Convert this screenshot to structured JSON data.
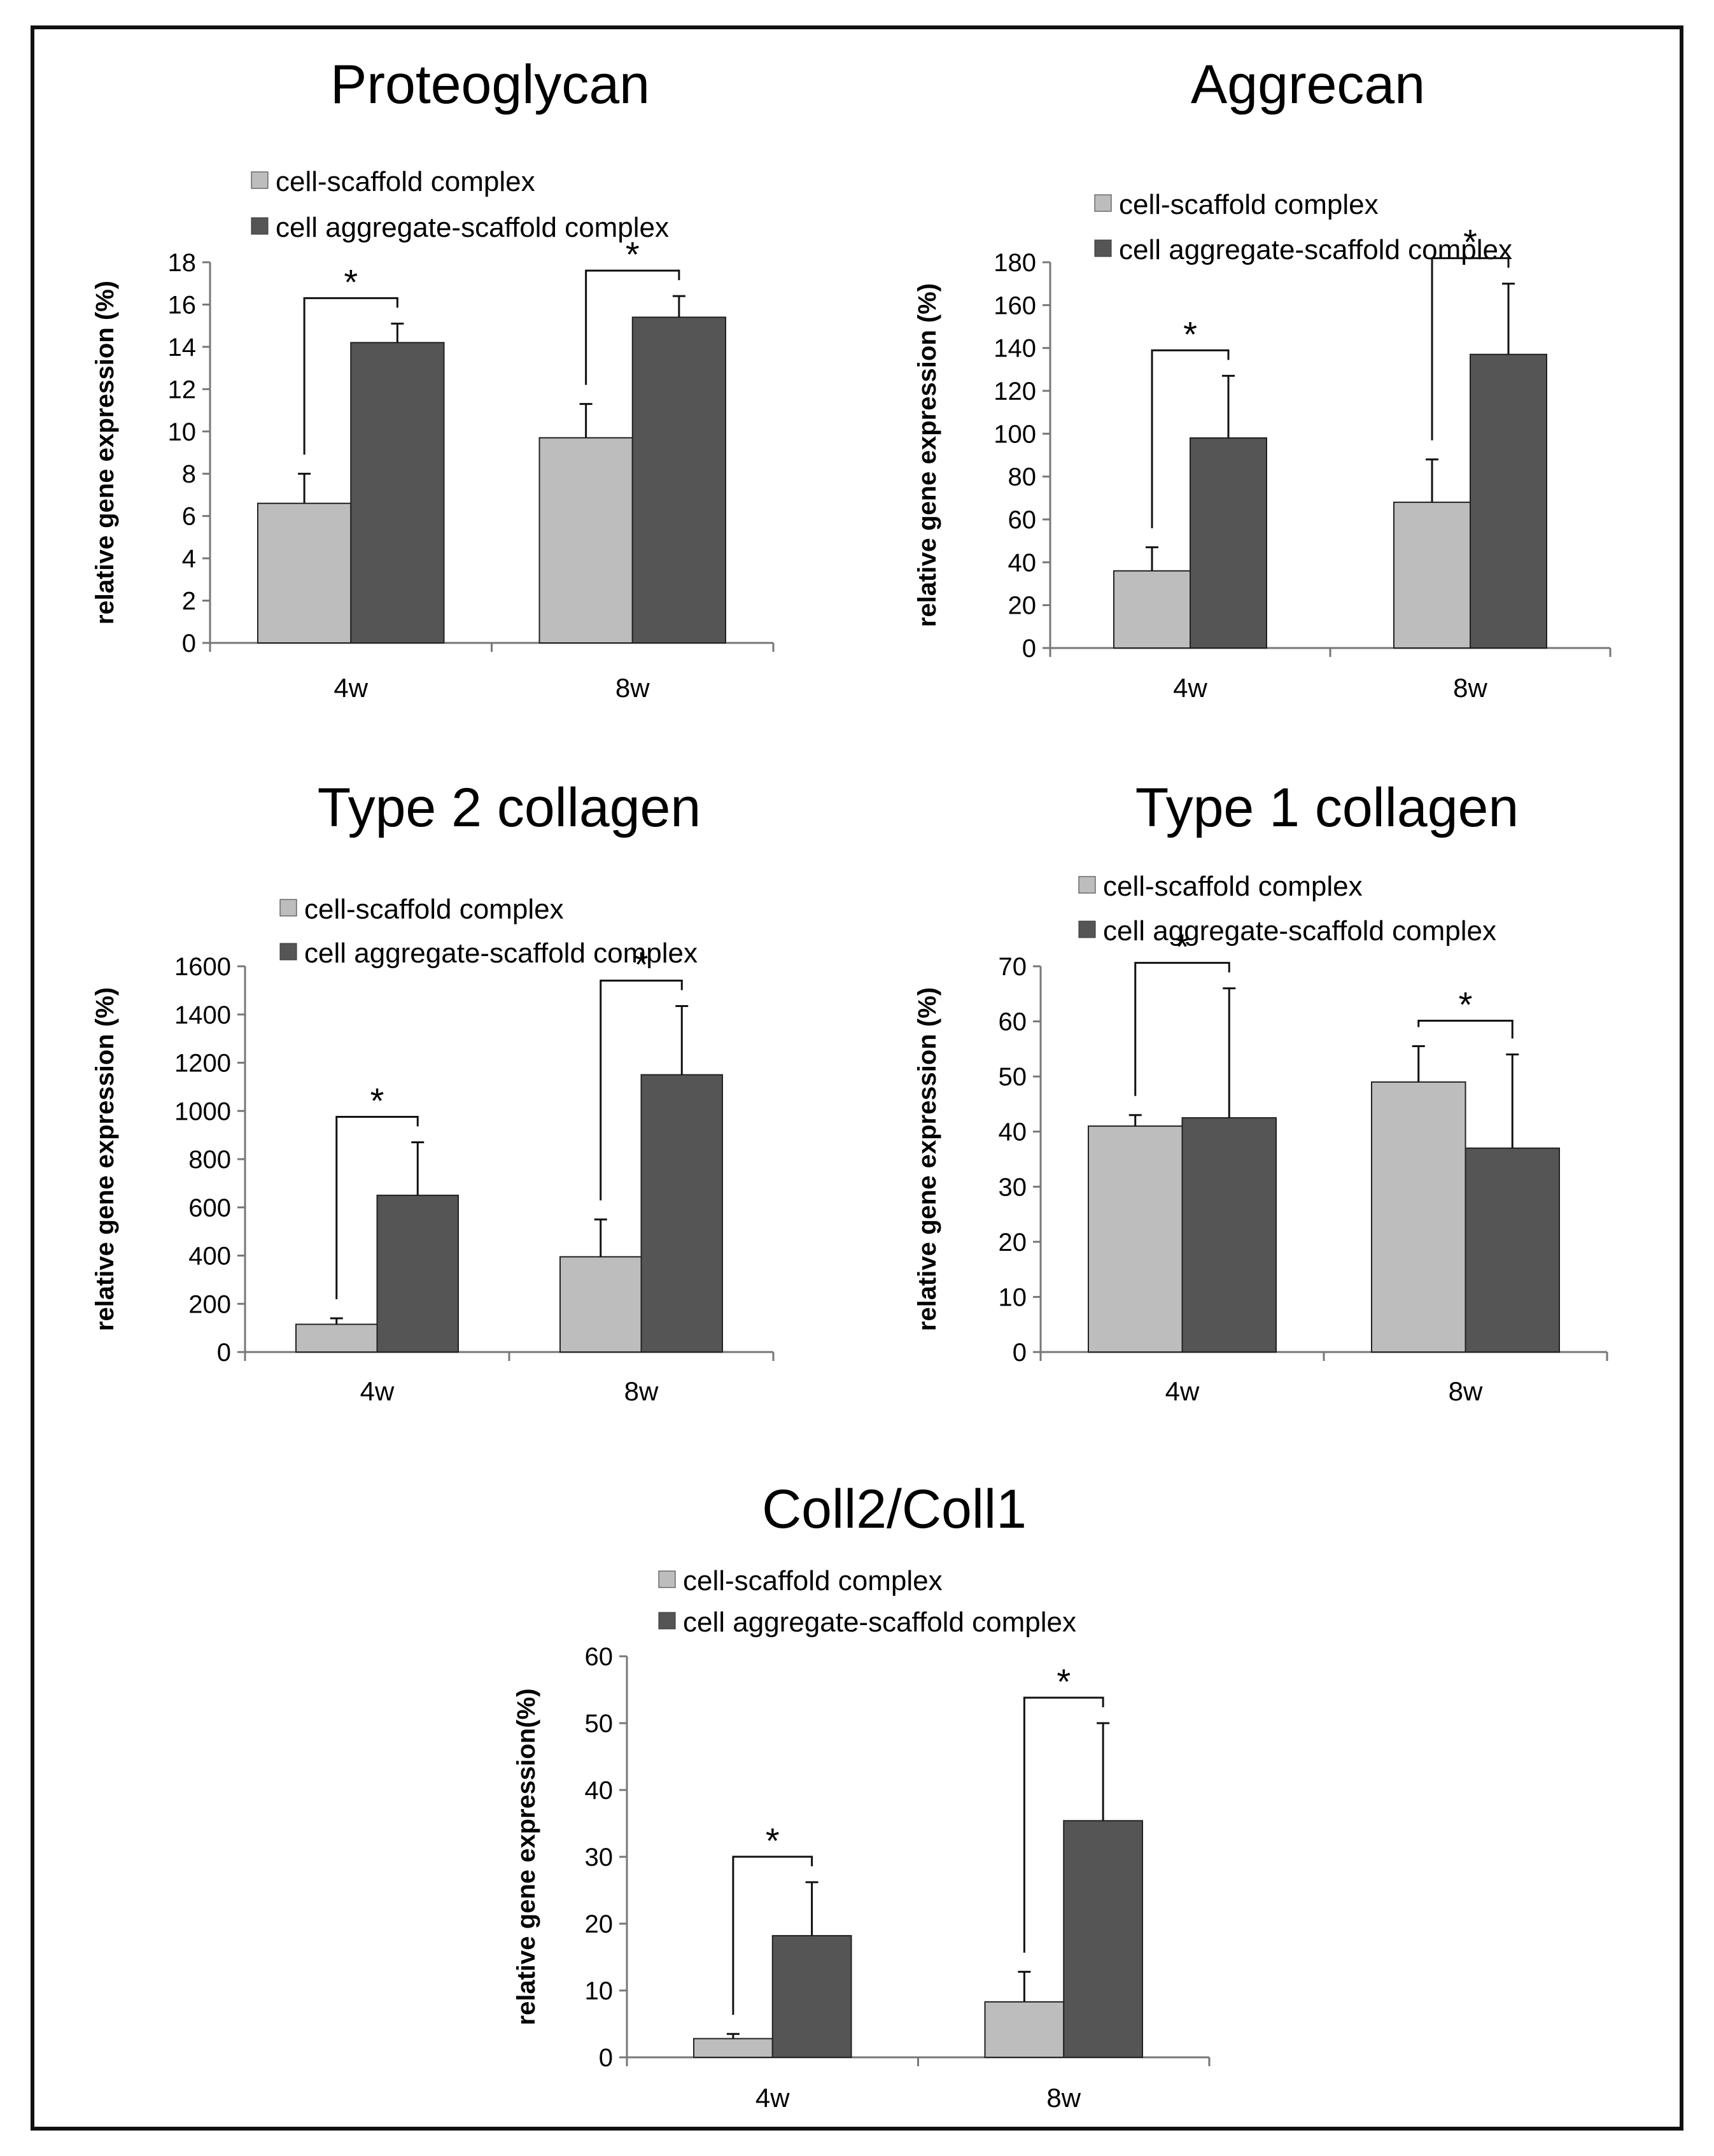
{
  "colors": {
    "light": "#bdbdbd",
    "dark": "#555555",
    "axis": "#777777",
    "line": "#111111"
  },
  "chart_data": [
    {
      "type": "bar",
      "title": "Proteoglycan",
      "ylabel": "relative gene expression (%)",
      "categories": [
        "4w",
        "8w"
      ],
      "ylim": [
        0,
        18
      ],
      "yticks": [
        0,
        2,
        4,
        6,
        8,
        10,
        12,
        14,
        16,
        18
      ],
      "series": [
        {
          "name": "cell-scaffold complex",
          "values": [
            6.6,
            9.7
          ],
          "errors": [
            1.4,
            1.6
          ]
        },
        {
          "name": "cell aggregate-scaffold complex",
          "values": [
            14.2,
            15.4
          ],
          "errors": [
            0.9,
            1.0
          ]
        }
      ],
      "significance": [
        "*",
        "*"
      ]
    },
    {
      "type": "bar",
      "title": "Aggrecan",
      "ylabel": "relative gene expression (%)",
      "categories": [
        "4w",
        "8w"
      ],
      "ylim": [
        0,
        180
      ],
      "yticks": [
        0,
        20,
        40,
        60,
        80,
        100,
        120,
        140,
        160,
        180
      ],
      "series": [
        {
          "name": "cell-scaffold complex",
          "values": [
            36,
            68
          ],
          "errors": [
            11,
            20
          ]
        },
        {
          "name": "cell aggregate-scaffold complex",
          "values": [
            98,
            137
          ],
          "errors": [
            29,
            33
          ]
        }
      ],
      "significance": [
        "*",
        "*"
      ]
    },
    {
      "type": "bar",
      "title": "Type 2 collagen",
      "ylabel": "relative gene expression (%)",
      "categories": [
        "4w",
        "8w"
      ],
      "ylim": [
        0,
        1600
      ],
      "yticks": [
        0,
        200,
        400,
        600,
        800,
        1000,
        1200,
        1400,
        1600
      ],
      "series": [
        {
          "name": "cell-scaffold complex",
          "values": [
            115,
            395
          ],
          "errors": [
            25,
            155
          ]
        },
        {
          "name": "cell aggregate-scaffold complex",
          "values": [
            650,
            1150
          ],
          "errors": [
            220,
            285
          ]
        }
      ],
      "significance": [
        "*",
        "*"
      ]
    },
    {
      "type": "bar",
      "title": "Type 1 collagen",
      "ylabel": "relative gene expression (%)",
      "categories": [
        "4w",
        "8w"
      ],
      "ylim": [
        0,
        70
      ],
      "yticks": [
        0,
        10,
        20,
        30,
        40,
        50,
        60,
        70
      ],
      "series": [
        {
          "name": "cell-scaffold complex",
          "values": [
            41,
            49
          ],
          "errors": [
            2,
            6.5
          ]
        },
        {
          "name": "cell aggregate-scaffold complex",
          "values": [
            42.5,
            37
          ],
          "errors": [
            23.5,
            17
          ]
        }
      ],
      "significance": [
        "*",
        "*"
      ]
    },
    {
      "type": "bar",
      "title": "Coll2/Coll1",
      "ylabel": "relative gene expression(%)",
      "categories": [
        "4w",
        "8w"
      ],
      "ylim": [
        0,
        60
      ],
      "yticks": [
        0,
        10,
        20,
        30,
        40,
        50,
        60
      ],
      "series": [
        {
          "name": "cell-scaffold complex",
          "values": [
            2.8,
            8.3
          ],
          "errors": [
            0.7,
            4.5
          ]
        },
        {
          "name": "cell aggregate-scaffold complex",
          "values": [
            18.2,
            35.4
          ],
          "errors": [
            8,
            14.6
          ]
        }
      ],
      "significance": [
        "*",
        "*"
      ]
    }
  ]
}
